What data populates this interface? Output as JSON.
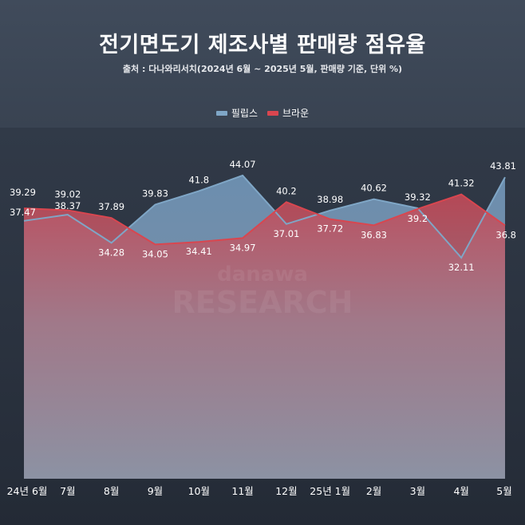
{
  "chart_data": {
    "type": "area",
    "title": "전기면도기 제조사별 판매량 점유율",
    "subtitle": "출처 : 다나와리서치(2024년 6월 ~ 2025년 5월, 판매량 기준, 단위 %)",
    "watermark": "danawa RESEARCH",
    "categories": [
      "24년 6월",
      "7월",
      "8월",
      "9월",
      "10월",
      "11월",
      "12월",
      "25년 1월",
      "2월",
      "3월",
      "4월",
      "5월"
    ],
    "series": [
      {
        "name": "필립스",
        "color": "#7fa6c6",
        "values": [
          37.47,
          38.37,
          34.28,
          39.83,
          41.8,
          44.07,
          37.01,
          38.98,
          40.62,
          39.32,
          32.11,
          43.81
        ]
      },
      {
        "name": "브라운",
        "color": "#d9464f",
        "values": [
          39.29,
          39.02,
          37.89,
          34.05,
          34.41,
          34.97,
          40.2,
          37.72,
          36.83,
          39.2,
          41.32,
          36.8
        ]
      }
    ],
    "value_labels": {
      "필립스": [
        "37.47",
        "38.37",
        "34.28",
        "39.83",
        "41.8",
        "44.07",
        "37.01",
        "38.98",
        "40.62",
        "39.32",
        "32.11",
        "43.81"
      ],
      "브라운": [
        "39.29",
        "39.02",
        "37.89",
        "34.05",
        "34.41",
        "34.97",
        "40.2",
        "37.72",
        "36.83",
        "39.2",
        "41.32",
        "36.8"
      ]
    },
    "ylim": [
      0,
      60
    ],
    "xlabel": "",
    "ylabel": "",
    "grid": false,
    "legend_position": "top-center"
  }
}
